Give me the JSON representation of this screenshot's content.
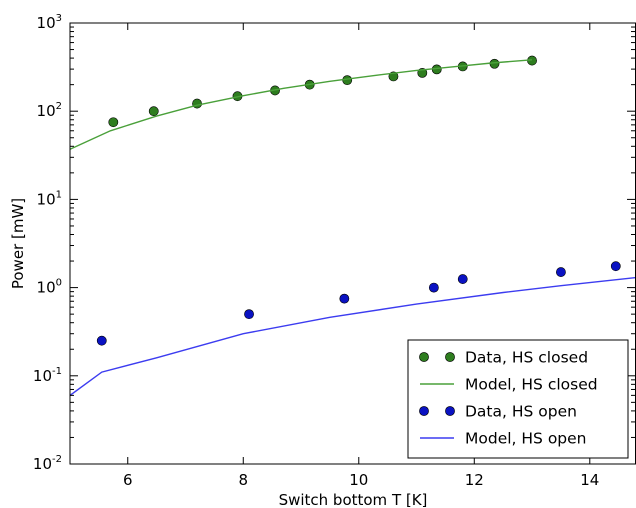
{
  "chart_data": {
    "type": "scatter",
    "title": "",
    "xlabel": "Switch bottom T [K]",
    "ylabel": "Power [mW]",
    "xlim": [
      5,
      14.8
    ],
    "ylim": [
      0.01,
      1000
    ],
    "yscale": "log",
    "x_ticks": [
      {
        "value": 6,
        "label": "6"
      },
      {
        "value": 8,
        "label": "8"
      },
      {
        "value": 10,
        "label": "10"
      },
      {
        "value": 12,
        "label": "12"
      },
      {
        "value": 14,
        "label": "14"
      }
    ],
    "y_ticks": [
      {
        "value": 0.01,
        "base": "10",
        "exp": "-2"
      },
      {
        "value": 0.1,
        "base": "10",
        "exp": "-1"
      },
      {
        "value": 1,
        "base": "10",
        "exp": "0"
      },
      {
        "value": 10,
        "base": "10",
        "exp": "1"
      },
      {
        "value": 100,
        "base": "10",
        "exp": "2"
      },
      {
        "value": 1000,
        "base": "10",
        "exp": "3"
      }
    ],
    "grid": false,
    "legend_position": "bottom-right",
    "series": [
      {
        "name": "Data, HS closed",
        "kind": "markers",
        "color": "#2e7d1f",
        "x": [
          5.75,
          6.45,
          7.2,
          7.9,
          8.55,
          9.15,
          9.8,
          10.6,
          11.1,
          11.35,
          11.8,
          12.35,
          13.0
        ],
        "y": [
          75,
          100,
          122,
          148,
          172,
          200,
          225,
          248,
          272,
          298,
          322,
          345,
          375
        ]
      },
      {
        "name": "Model, HS closed",
        "kind": "line",
        "color": "#4aa03a",
        "x": [
          5.0,
          5.7,
          6.5,
          7.2,
          8.0,
          8.7,
          9.5,
          10.3,
          11.0,
          11.7,
          12.3,
          13.0
        ],
        "y": [
          37,
          60,
          88,
          117,
          150,
          182,
          218,
          255,
          290,
          322,
          352,
          383
        ]
      },
      {
        "name": "Data, HS open",
        "kind": "markers",
        "color": "#0a12c2",
        "x": [
          5.55,
          8.1,
          9.75,
          11.3,
          11.8,
          13.5,
          14.45
        ],
        "y": [
          0.25,
          0.5,
          0.75,
          1.0,
          1.25,
          1.5,
          1.75
        ]
      },
      {
        "name": "Model, HS open",
        "kind": "line",
        "color": "#3c3cf0",
        "x": [
          5.0,
          5.55,
          6.5,
          8.0,
          9.5,
          11.0,
          12.5,
          13.5,
          14.8
        ],
        "y": [
          0.06,
          0.11,
          0.16,
          0.3,
          0.46,
          0.65,
          0.88,
          1.05,
          1.3
        ]
      }
    ]
  }
}
